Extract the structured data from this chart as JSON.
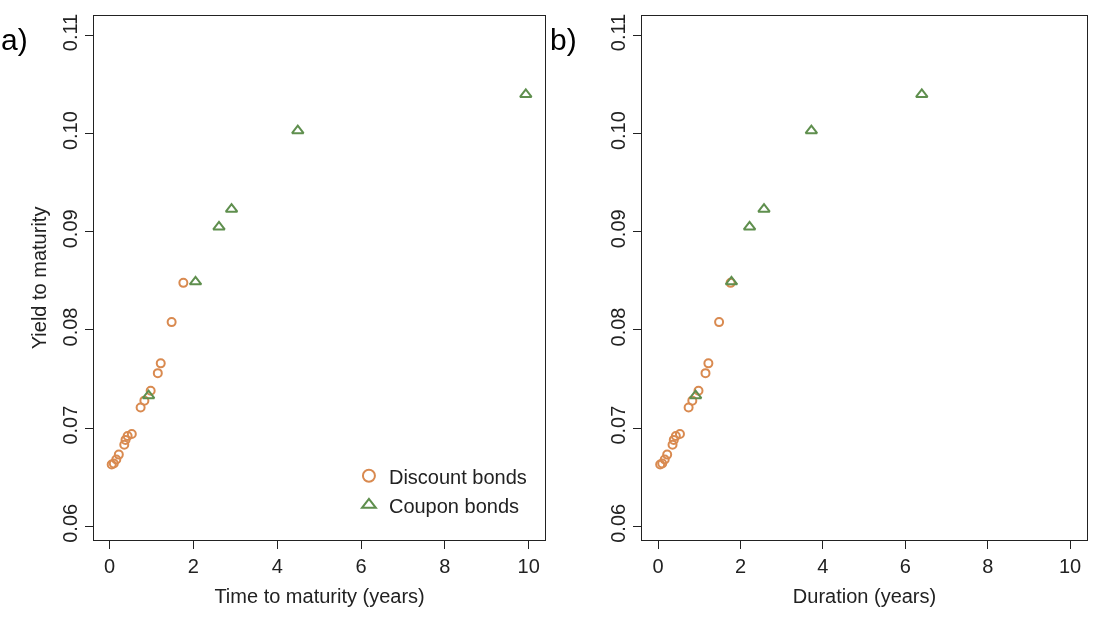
{
  "chart_data": [
    {
      "type": "scatter",
      "title": "a)",
      "xlabel": "Time to maturity (years)",
      "ylabel": "Yield to maturity",
      "xlim": [
        -0.38,
        10.4
      ],
      "ylim": [
        0.0586,
        0.112
      ],
      "xticks": [
        0,
        2,
        4,
        6,
        8,
        10
      ],
      "yticks": [
        0.06,
        0.07,
        0.08,
        0.09,
        {
          "value": 0.1,
          "label": "0.10"
        },
        0.11
      ],
      "legend": "bottom right",
      "series": [
        {
          "name": "Discount bonds",
          "color": "#d98a50",
          "marker": "circle",
          "x": [
            1.76,
            1.48,
            1.22,
            1.15,
            0.98,
            0.83,
            0.74,
            0.53,
            0.43,
            0.38,
            0.35,
            0.22,
            0.16,
            0.1,
            0.05
          ],
          "values": [
            0.0848,
            0.0808,
            0.0766,
            0.0756,
            0.0738,
            0.0728,
            0.0721,
            0.0694,
            0.0692,
            0.0688,
            0.0683,
            0.0673,
            0.0668,
            0.0664,
            0.0663
          ]
        },
        {
          "name": "Coupon bonds",
          "color": "#5f8f4e",
          "marker": "triangle",
          "x": [
            0.93,
            2.05,
            2.61,
            2.91,
            4.49,
            9.93
          ],
          "values": [
            0.0733,
            0.0849,
            0.0905,
            0.0923,
            0.1003,
            0.104
          ]
        }
      ]
    },
    {
      "type": "scatter",
      "title": "b)",
      "xlabel": "Duration (years)",
      "xlim": [
        -0.38,
        10.4
      ],
      "ylim": [
        0.0586,
        0.112
      ],
      "xticks": [
        0,
        2,
        4,
        6,
        8,
        10
      ],
      "yticks": [
        0.06,
        0.07,
        0.08,
        0.09,
        {
          "value": 0.1,
          "label": "0.10"
        },
        0.11
      ],
      "series": [
        {
          "color": "#d98a50",
          "marker": "circle",
          "x": [
            1.76,
            1.48,
            1.22,
            1.15,
            0.98,
            0.83,
            0.74,
            0.53,
            0.43,
            0.38,
            0.35,
            0.22,
            0.16,
            0.1,
            0.05
          ],
          "values": [
            0.0848,
            0.0808,
            0.0766,
            0.0756,
            0.0738,
            0.0728,
            0.0721,
            0.0694,
            0.0692,
            0.0688,
            0.0683,
            0.0673,
            0.0668,
            0.0664,
            0.0663
          ]
        },
        {
          "color": "#5f8f4e",
          "marker": "triangle",
          "x": [
            0.91,
            1.78,
            2.22,
            2.57,
            3.72,
            6.4
          ],
          "values": [
            0.0733,
            0.0849,
            0.0905,
            0.0923,
            0.1003,
            0.104
          ]
        }
      ]
    }
  ]
}
